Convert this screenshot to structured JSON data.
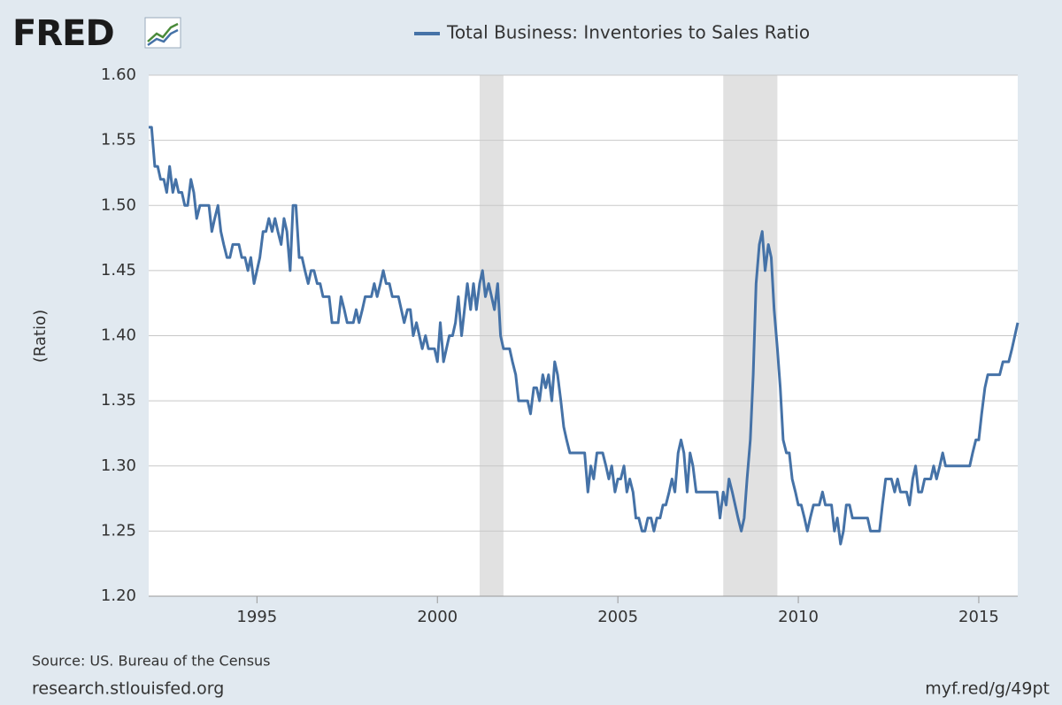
{
  "chart_data": {
    "type": "line",
    "logo": "FRED",
    "y_label": "(Ratio)",
    "source": "Source: US. Bureau of the Census",
    "site": "research.stlouisfed.org",
    "short_link": "myf.red/g/49pt",
    "xlim": [
      1992,
      2016.08
    ],
    "ylim": [
      1.2,
      1.6
    ],
    "xticks": [
      1995,
      2000,
      2005,
      2010,
      2015
    ],
    "yticks": [
      {
        "value": 1.2,
        "label": "1.20"
      },
      1.25,
      {
        "value": 1.3,
        "label": "1.30"
      },
      1.35,
      {
        "value": 1.4,
        "label": "1.40"
      },
      1.45,
      {
        "value": 1.5,
        "label": "1.50"
      },
      1.55,
      {
        "value": 1.6,
        "label": "1.60"
      }
    ],
    "grid": true,
    "recessions": [
      [
        2001.17,
        2001.83
      ],
      [
        2007.92,
        2009.42
      ]
    ],
    "x": [
      1992.0,
      1992.08,
      1992.17,
      1992.25,
      1992.33,
      1992.42,
      1992.5,
      1992.58,
      1992.67,
      1992.75,
      1992.83,
      1992.92,
      1993.0,
      1993.08,
      1993.17,
      1993.25,
      1993.33,
      1993.42,
      1993.5,
      1993.58,
      1993.67,
      1993.75,
      1993.83,
      1993.92,
      1994.0,
      1994.08,
      1994.17,
      1994.25,
      1994.33,
      1994.42,
      1994.5,
      1994.58,
      1994.67,
      1994.75,
      1994.83,
      1994.92,
      1995.0,
      1995.08,
      1995.17,
      1995.25,
      1995.33,
      1995.42,
      1995.5,
      1995.58,
      1995.67,
      1995.75,
      1995.83,
      1995.92,
      1996.0,
      1996.08,
      1996.17,
      1996.25,
      1996.33,
      1996.42,
      1996.5,
      1996.58,
      1996.67,
      1996.75,
      1996.83,
      1996.92,
      1997.0,
      1997.08,
      1997.17,
      1997.25,
      1997.33,
      1997.42,
      1997.5,
      1997.58,
      1997.67,
      1997.75,
      1997.83,
      1997.92,
      1998.0,
      1998.08,
      1998.17,
      1998.25,
      1998.33,
      1998.42,
      1998.5,
      1998.58,
      1998.67,
      1998.75,
      1998.83,
      1998.92,
      1999.0,
      1999.08,
      1999.17,
      1999.25,
      1999.33,
      1999.42,
      1999.5,
      1999.58,
      1999.67,
      1999.75,
      1999.83,
      1999.92,
      2000.0,
      2000.08,
      2000.17,
      2000.25,
      2000.33,
      2000.42,
      2000.5,
      2000.58,
      2000.67,
      2000.75,
      2000.83,
      2000.92,
      2001.0,
      2001.08,
      2001.17,
      2001.25,
      2001.33,
      2001.42,
      2001.5,
      2001.58,
      2001.67,
      2001.75,
      2001.83,
      2001.92,
      2002.0,
      2002.08,
      2002.17,
      2002.25,
      2002.33,
      2002.42,
      2002.5,
      2002.58,
      2002.67,
      2002.75,
      2002.83,
      2002.92,
      2003.0,
      2003.08,
      2003.17,
      2003.25,
      2003.33,
      2003.42,
      2003.5,
      2003.58,
      2003.67,
      2003.75,
      2003.83,
      2003.92,
      2004.0,
      2004.08,
      2004.17,
      2004.25,
      2004.33,
      2004.42,
      2004.5,
      2004.58,
      2004.67,
      2004.75,
      2004.83,
      2004.92,
      2005.0,
      2005.08,
      2005.17,
      2005.25,
      2005.33,
      2005.42,
      2005.5,
      2005.58,
      2005.67,
      2005.75,
      2005.83,
      2005.92,
      2006.0,
      2006.08,
      2006.17,
      2006.25,
      2006.33,
      2006.42,
      2006.5,
      2006.58,
      2006.67,
      2006.75,
      2006.83,
      2006.92,
      2007.0,
      2007.08,
      2007.17,
      2007.25,
      2007.33,
      2007.42,
      2007.5,
      2007.58,
      2007.67,
      2007.75,
      2007.83,
      2007.92,
      2008.0,
      2008.08,
      2008.17,
      2008.25,
      2008.33,
      2008.42,
      2008.5,
      2008.58,
      2008.67,
      2008.75,
      2008.83,
      2008.92,
      2009.0,
      2009.08,
      2009.17,
      2009.25,
      2009.33,
      2009.42,
      2009.5,
      2009.58,
      2009.67,
      2009.75,
      2009.83,
      2009.92,
      2010.0,
      2010.08,
      2010.17,
      2010.25,
      2010.33,
      2010.42,
      2010.5,
      2010.58,
      2010.67,
      2010.75,
      2010.83,
      2010.92,
      2011.0,
      2011.08,
      2011.17,
      2011.25,
      2011.33,
      2011.42,
      2011.5,
      2011.58,
      2011.67,
      2011.75,
      2011.83,
      2011.92,
      2012.0,
      2012.08,
      2012.17,
      2012.25,
      2012.33,
      2012.42,
      2012.5,
      2012.58,
      2012.67,
      2012.75,
      2012.83,
      2012.92,
      2013.0,
      2013.08,
      2013.17,
      2013.25,
      2013.33,
      2013.42,
      2013.5,
      2013.58,
      2013.67,
      2013.75,
      2013.83,
      2013.92,
      2014.0,
      2014.08,
      2014.17,
      2014.25,
      2014.33,
      2014.42,
      2014.5,
      2014.58,
      2014.67,
      2014.75,
      2014.83,
      2014.92,
      2015.0,
      2015.08,
      2015.17,
      2015.25,
      2015.33,
      2015.42,
      2015.5,
      2015.58,
      2015.67,
      2015.75,
      2015.83,
      2015.92,
      2016.0,
      2016.08
    ],
    "series": [
      {
        "name": "Total Business: Inventories to Sales Ratio",
        "color": "#4572a7",
        "values": [
          1.56,
          1.56,
          1.53,
          1.53,
          1.52,
          1.52,
          1.51,
          1.53,
          1.51,
          1.52,
          1.51,
          1.51,
          1.5,
          1.5,
          1.52,
          1.51,
          1.49,
          1.5,
          1.5,
          1.5,
          1.5,
          1.48,
          1.49,
          1.5,
          1.48,
          1.47,
          1.46,
          1.46,
          1.47,
          1.47,
          1.47,
          1.46,
          1.46,
          1.45,
          1.46,
          1.44,
          1.45,
          1.46,
          1.48,
          1.48,
          1.49,
          1.48,
          1.49,
          1.48,
          1.47,
          1.49,
          1.48,
          1.45,
          1.5,
          1.5,
          1.46,
          1.46,
          1.45,
          1.44,
          1.45,
          1.45,
          1.44,
          1.44,
          1.43,
          1.43,
          1.43,
          1.41,
          1.41,
          1.41,
          1.43,
          1.42,
          1.41,
          1.41,
          1.41,
          1.42,
          1.41,
          1.42,
          1.43,
          1.43,
          1.43,
          1.44,
          1.43,
          1.44,
          1.45,
          1.44,
          1.44,
          1.43,
          1.43,
          1.43,
          1.42,
          1.41,
          1.42,
          1.42,
          1.4,
          1.41,
          1.4,
          1.39,
          1.4,
          1.39,
          1.39,
          1.39,
          1.38,
          1.41,
          1.38,
          1.39,
          1.4,
          1.4,
          1.41,
          1.43,
          1.4,
          1.42,
          1.44,
          1.42,
          1.44,
          1.42,
          1.44,
          1.45,
          1.43,
          1.44,
          1.43,
          1.42,
          1.44,
          1.4,
          1.39,
          1.39,
          1.39,
          1.38,
          1.37,
          1.35,
          1.35,
          1.35,
          1.35,
          1.34,
          1.36,
          1.36,
          1.35,
          1.37,
          1.36,
          1.37,
          1.35,
          1.38,
          1.37,
          1.35,
          1.33,
          1.32,
          1.31,
          1.31,
          1.31,
          1.31,
          1.31,
          1.31,
          1.28,
          1.3,
          1.29,
          1.31,
          1.31,
          1.31,
          1.3,
          1.29,
          1.3,
          1.28,
          1.29,
          1.29,
          1.3,
          1.28,
          1.29,
          1.28,
          1.26,
          1.26,
          1.25,
          1.25,
          1.26,
          1.26,
          1.25,
          1.26,
          1.26,
          1.27,
          1.27,
          1.28,
          1.29,
          1.28,
          1.31,
          1.32,
          1.31,
          1.28,
          1.31,
          1.3,
          1.28,
          1.28,
          1.28,
          1.28,
          1.28,
          1.28,
          1.28,
          1.28,
          1.26,
          1.28,
          1.27,
          1.29,
          1.28,
          1.27,
          1.26,
          1.25,
          1.26,
          1.29,
          1.32,
          1.37,
          1.44,
          1.47,
          1.48,
          1.45,
          1.47,
          1.46,
          1.42,
          1.39,
          1.36,
          1.32,
          1.31,
          1.31,
          1.29,
          1.28,
          1.27,
          1.27,
          1.26,
          1.25,
          1.26,
          1.27,
          1.27,
          1.27,
          1.28,
          1.27,
          1.27,
          1.27,
          1.25,
          1.26,
          1.24,
          1.25,
          1.27,
          1.27,
          1.26,
          1.26,
          1.26,
          1.26,
          1.26,
          1.26,
          1.25,
          1.25,
          1.25,
          1.25,
          1.27,
          1.29,
          1.29,
          1.29,
          1.28,
          1.29,
          1.28,
          1.28,
          1.28,
          1.27,
          1.29,
          1.3,
          1.28,
          1.28,
          1.29,
          1.29,
          1.29,
          1.3,
          1.29,
          1.3,
          1.31,
          1.3,
          1.3,
          1.3,
          1.3,
          1.3,
          1.3,
          1.3,
          1.3,
          1.3,
          1.31,
          1.32,
          1.32,
          1.34,
          1.36,
          1.37,
          1.37,
          1.37,
          1.37,
          1.37,
          1.38,
          1.38,
          1.38,
          1.39,
          1.4,
          1.41
        ]
      }
    ]
  }
}
